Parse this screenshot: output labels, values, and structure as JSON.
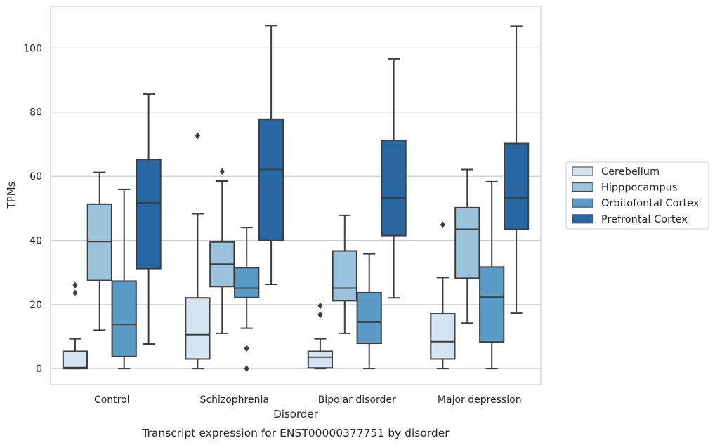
{
  "chart_data": {
    "type": "boxplot",
    "xlabel": "Disorder",
    "ylabel": "TPMs",
    "caption": "Transcript expression for ENST00000377751 by disorder",
    "categories": [
      "Control",
      "Schizophrenia",
      "Bipolar disorder",
      "Major depression"
    ],
    "ylim": [
      -5,
      113
    ],
    "yticks": [
      0,
      20,
      40,
      60,
      80,
      100
    ],
    "grid": "horizontal",
    "legend_position": "right",
    "series": [
      {
        "name": "Cerebellum",
        "color": "#d4e4f2",
        "boxes": [
          {
            "whislo": 0,
            "q1": 0,
            "med": 0.3,
            "q3": 5.4,
            "whishi": 9.3,
            "fliers": [
              23.6,
              26
            ]
          },
          {
            "whislo": 0,
            "q1": 3,
            "med": 10.6,
            "q3": 22.1,
            "whishi": 48.3,
            "fliers": [
              72.6
            ]
          },
          {
            "whislo": 0,
            "q1": 0.2,
            "med": 3.6,
            "q3": 5.4,
            "whishi": 9.3,
            "fliers": [
              16.8,
              19.6
            ]
          },
          {
            "whislo": 0,
            "q1": 3,
            "med": 8.4,
            "q3": 17.1,
            "whishi": 28.4,
            "fliers": [
              44.9
            ]
          }
        ]
      },
      {
        "name": "Hipppocampus",
        "color": "#9ac3de",
        "boxes": [
          {
            "whislo": 12,
            "q1": 27.5,
            "med": 39.6,
            "q3": 51.3,
            "whishi": 61.2,
            "fliers": []
          },
          {
            "whislo": 11,
            "q1": 25.6,
            "med": 32.6,
            "q3": 39.5,
            "whishi": 58.5,
            "fliers": [
              61.5
            ]
          },
          {
            "whislo": 11,
            "q1": 21.2,
            "med": 25.1,
            "q3": 36.7,
            "whishi": 47.8,
            "fliers": []
          },
          {
            "whislo": 14.2,
            "q1": 28.2,
            "med": 43.5,
            "q3": 50.2,
            "whishi": 62.1,
            "fliers": []
          }
        ]
      },
      {
        "name": "Orbitofontal Cortex",
        "color": "#5a9bc8",
        "boxes": [
          {
            "whislo": 0,
            "q1": 3.8,
            "med": 13.8,
            "q3": 27.3,
            "whishi": 55.9,
            "fliers": []
          },
          {
            "whislo": 12.6,
            "q1": 22.2,
            "med": 25.1,
            "q3": 31.5,
            "whishi": 44,
            "fliers": [
              0,
              6.3
            ]
          },
          {
            "whislo": 0,
            "q1": 7.9,
            "med": 14.5,
            "q3": 23.7,
            "whishi": 35.8,
            "fliers": []
          },
          {
            "whislo": 0,
            "q1": 8.3,
            "med": 22.3,
            "q3": 31.7,
            "whishi": 58.3,
            "fliers": []
          }
        ]
      },
      {
        "name": "Prefrontal Cortex",
        "color": "#2866a4",
        "boxes": [
          {
            "whislo": 7.7,
            "q1": 31.2,
            "med": 51.7,
            "q3": 65.2,
            "whishi": 85.6,
            "fliers": []
          },
          {
            "whislo": 26.3,
            "q1": 40,
            "med": 62.1,
            "q3": 77.8,
            "whishi": 107,
            "fliers": []
          },
          {
            "whislo": 22.1,
            "q1": 41.5,
            "med": 53.2,
            "q3": 71.2,
            "whishi": 96.6,
            "fliers": []
          },
          {
            "whislo": 17.3,
            "q1": 43.5,
            "med": 53.3,
            "q3": 70.2,
            "whishi": 106.8,
            "fliers": []
          }
        ]
      }
    ]
  }
}
